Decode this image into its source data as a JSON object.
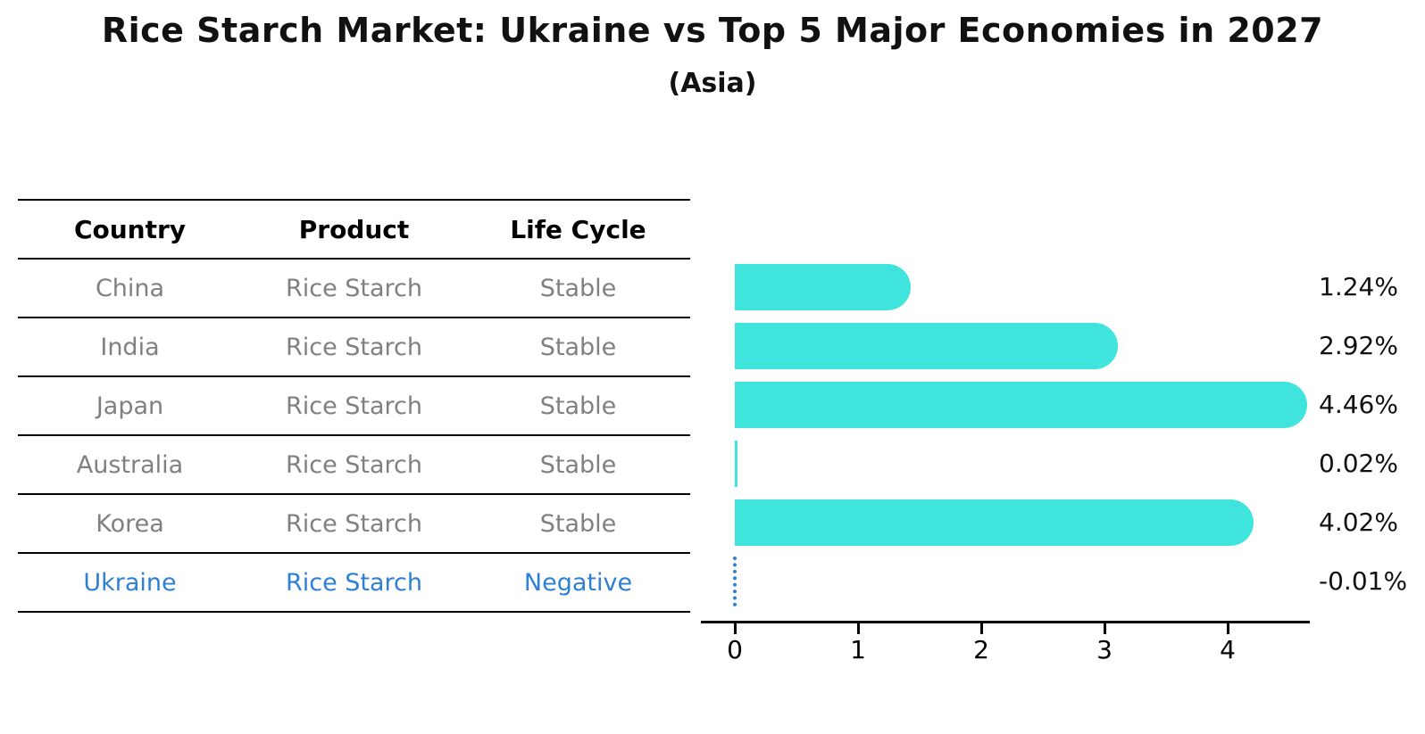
{
  "title": "Rice Starch Market: Ukraine vs Top 5 Major Economies in 2027",
  "subtitle": "(Asia)",
  "table": {
    "headers": [
      "Country",
      "Product",
      "Life Cycle"
    ],
    "rows": [
      {
        "country": "China",
        "product": "Rice Starch",
        "life_cycle": "Stable",
        "highlight": false
      },
      {
        "country": "India",
        "product": "Rice Starch",
        "life_cycle": "Stable",
        "highlight": false
      },
      {
        "country": "Japan",
        "product": "Rice Starch",
        "life_cycle": "Stable",
        "highlight": false
      },
      {
        "country": "Australia",
        "product": "Rice Starch",
        "life_cycle": "Stable",
        "highlight": false
      },
      {
        "country": "Korea",
        "product": "Rice Starch",
        "life_cycle": "Stable",
        "highlight": false
      },
      {
        "country": "Ukraine",
        "product": "Rice Starch",
        "life_cycle": "Negative",
        "highlight": true
      }
    ]
  },
  "chart_data": {
    "type": "bar",
    "orientation": "horizontal",
    "categories": [
      "China",
      "India",
      "Japan",
      "Australia",
      "Korea",
      "Ukraine"
    ],
    "values": [
      1.24,
      2.92,
      4.46,
      0.02,
      4.02,
      -0.01
    ],
    "value_labels": [
      "1.24%",
      "2.92%",
      "4.46%",
      "0.02%",
      "4.02%",
      "-0.01%"
    ],
    "x_ticks": [
      "0",
      "1",
      "2",
      "3",
      "4"
    ],
    "xlim": [
      -0.27,
      4.67
    ],
    "grid": false,
    "legend": false,
    "bar_color": "#3FE4DC",
    "negative_marker_color": "#2E80D4",
    "ylabel": "",
    "xlabel": ""
  }
}
